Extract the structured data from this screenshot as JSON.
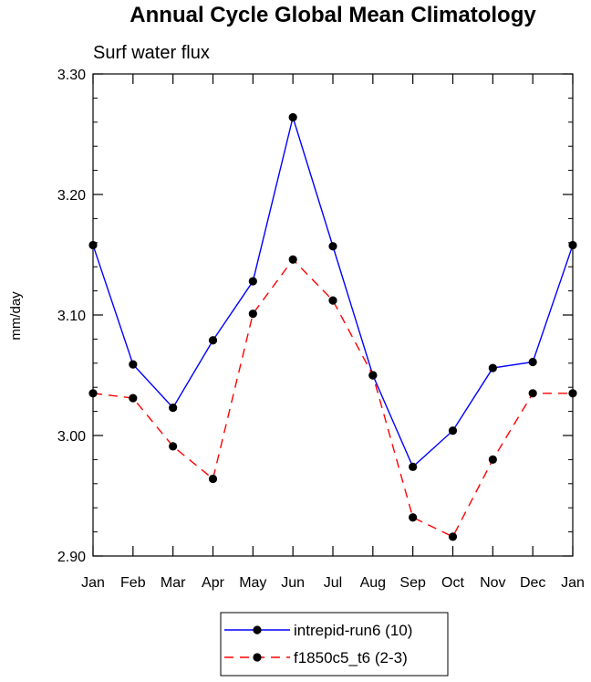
{
  "chart_data": {
    "type": "line",
    "title": "Annual Cycle Global Mean Climatology",
    "subtitle": "Surf water flux",
    "ylabel": "mm/day",
    "xlabel": "",
    "categories": [
      "Jan",
      "Feb",
      "Mar",
      "Apr",
      "May",
      "Jun",
      "Jul",
      "Aug",
      "Sep",
      "Oct",
      "Nov",
      "Dec",
      "Jan"
    ],
    "ylim": [
      2.9,
      3.3
    ],
    "yticks": [
      "2.90",
      "3.00",
      "3.10",
      "3.20",
      "3.30"
    ],
    "legend_position": "bottom-center",
    "series": [
      {
        "name": "intrepid-run6 (10)",
        "color": "#0000ff",
        "dash": "solid",
        "values": [
          3.158,
          3.059,
          3.023,
          3.079,
          3.128,
          3.264,
          3.157,
          3.05,
          2.974,
          3.004,
          3.056,
          3.061,
          3.158
        ]
      },
      {
        "name": "f1850c5_t6 (2-3)",
        "color": "#ff0000",
        "dash": "dashed",
        "values": [
          3.035,
          3.031,
          2.991,
          2.964,
          3.101,
          3.146,
          3.112,
          3.05,
          2.932,
          2.916,
          2.98,
          3.035,
          3.035
        ]
      }
    ]
  }
}
